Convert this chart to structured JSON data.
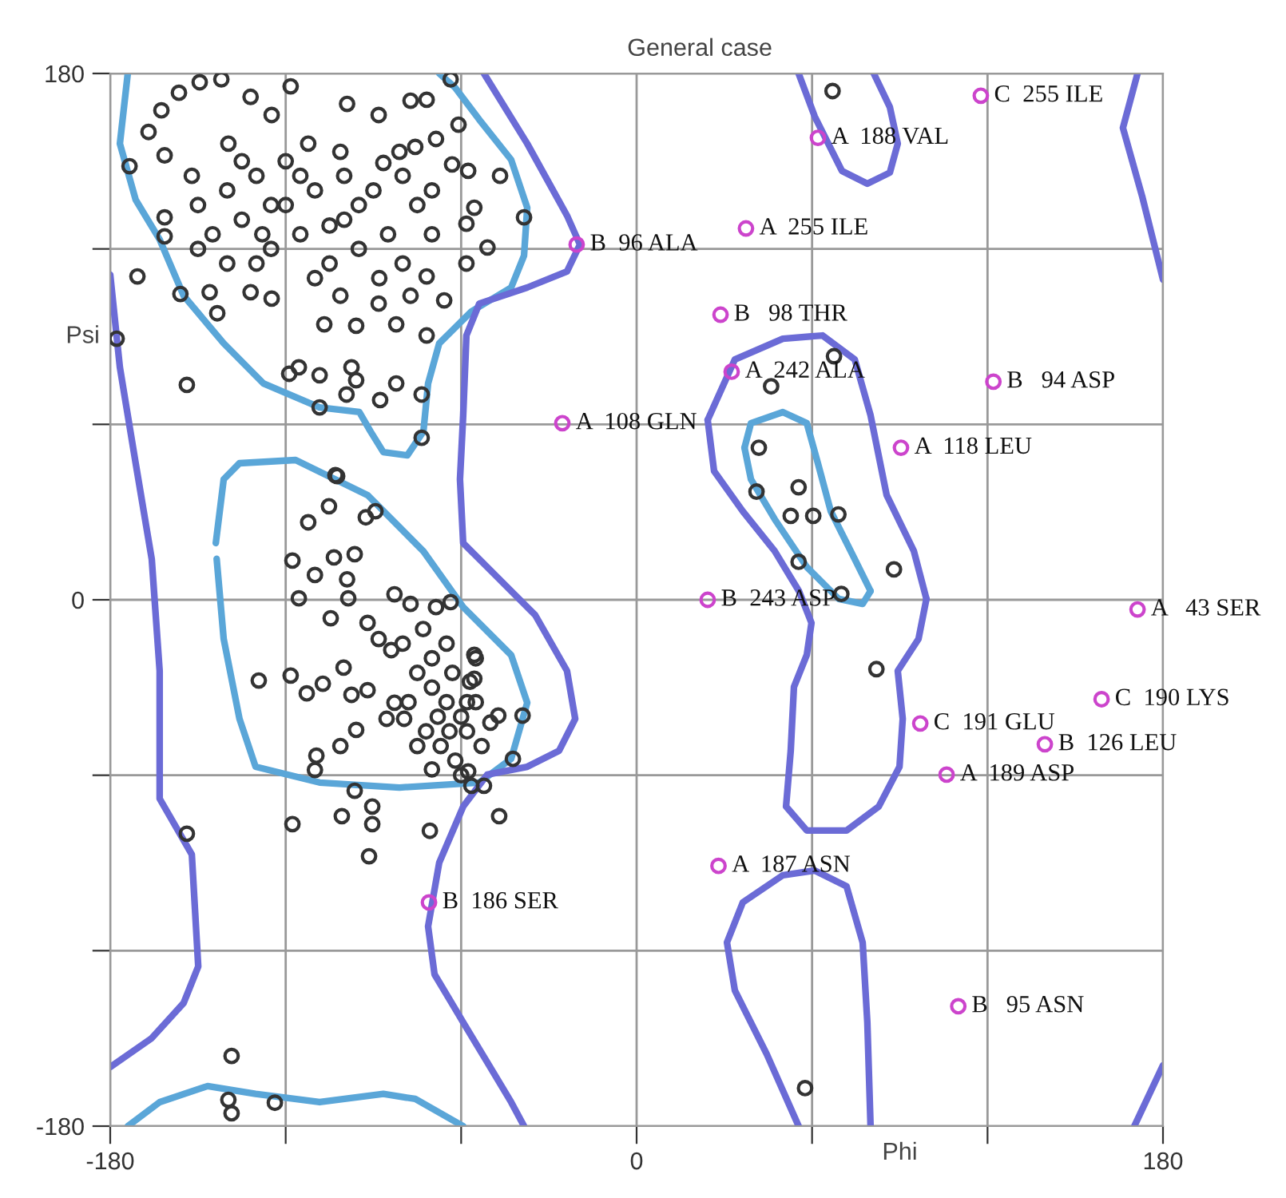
{
  "chart_data": {
    "type": "scatter",
    "title": "General case",
    "xlabel": "Phi",
    "ylabel": "Psi",
    "xlim": [
      -180,
      180
    ],
    "ylim": [
      -180,
      180
    ],
    "xticks": [
      -180,
      {
        "value": -120,
        "label": null
      },
      {
        "value": -60,
        "label": null
      },
      0,
      {
        "value": 60,
        "label": null
      },
      {
        "value": 120,
        "label": null
      },
      180
    ],
    "yticks": [
      -180,
      {
        "value": -120,
        "label": null
      },
      {
        "value": -60,
        "label": null
      },
      0,
      {
        "value": 60,
        "label": null
      },
      {
        "value": 120,
        "label": null
      },
      180
    ],
    "grid": true,
    "series": [
      {
        "type": "line",
        "color": "#5aa6d8",
        "x": [
          -174,
          -176.7,
          -171.3,
          -163.1,
          -154.9,
          -141.2,
          -127.6,
          -108.4,
          -94.8,
          -91,
          -86.6,
          -78.4,
          -72.9,
          -71.3,
          -67.5,
          -56.5,
          -42.9,
          -38.5,
          -37.4,
          -42.9,
          -53.8,
          -62,
          -67.5
        ],
        "values": [
          180,
          156,
          136.8,
          123.2,
          104,
          87.7,
          74,
          65.8,
          64.2,
          57.6,
          50.5,
          49.4,
          57.6,
          74,
          87.7,
          98.6,
          106.8,
          117.7,
          134.1,
          150.5,
          164.2,
          175.1,
          180
        ]
      },
      {
        "type": "line",
        "color": "#5aa6d8",
        "x": [
          -143.9,
          -141.2,
          -135.8,
          -116.6,
          -92,
          -72.9,
          -59.3,
          -42.9,
          -37.4,
          -42.9,
          -53.8,
          -81.1,
          -108.4,
          -130.3,
          -135.8,
          -141.2,
          -143.6
        ],
        "values": [
          19.4,
          41.2,
          46.7,
          47.8,
          35.8,
          16.6,
          -2.5,
          -18.9,
          -35.2,
          -54.4,
          -62.5,
          -64.2,
          -62.5,
          -57.1,
          -40.7,
          -13.4,
          14
        ]
      },
      {
        "type": "line",
        "color": "#5aa6d8",
        "x": [
          36.9,
          39.1,
          50,
          58.2,
          62,
          66.4,
          74.6,
          80
        ],
        "values": [
          52,
          60.4,
          64.2,
          60.4,
          46.7,
          30.3,
          13.9,
          3
        ]
      },
      {
        "type": "line",
        "color": "#5aa6d8",
        "x": [
          36.9,
          39.1,
          47.2,
          58.2,
          69.1,
          77.3,
          80
        ],
        "values": [
          52,
          41.2,
          27.6,
          11.2,
          0.3,
          -1.4,
          3
        ]
      },
      {
        "type": "line",
        "color": "#5aa6d8",
        "x": [
          -174,
          -163.1,
          -146.7,
          -130.3,
          -108.4,
          -86.6,
          -75.7,
          -59.3
        ],
        "values": [
          -180,
          -171.8,
          -166.3,
          -169,
          -171.8,
          -169,
          -170.7,
          -180
        ]
      },
      {
        "type": "line",
        "color": "#6b6bd6",
        "x": [
          -52.2,
          -37.4,
          -23.8,
          -19.4,
          -23.8,
          -37.4,
          -53.8,
          -58.2,
          -59.3,
          -60.4,
          -59.3,
          -48.4,
          -34.7,
          -23.8,
          -21,
          -26.5,
          -37.4,
          -51.1,
          -59.3,
          -67.5,
          -71.3,
          -69.1,
          -59.3,
          -51.1,
          -42.9,
          -38.5
        ],
        "values": [
          180,
          156,
          131.4,
          121.5,
          112.3,
          106.8,
          101.3,
          90.4,
          63.1,
          41.2,
          19.4,
          8.5,
          -5.2,
          -24.3,
          -40.7,
          -51.6,
          -57.1,
          -59.8,
          -70.7,
          -89.9,
          -111.7,
          -128.1,
          -144.5,
          -158.1,
          -171.8,
          -180
        ]
      },
      {
        "type": "line",
        "color": "#6b6bd6",
        "x": [
          -180,
          -176.7,
          -171.3,
          -165.8,
          -163.1,
          -163.1,
          -152.1,
          -151,
          -149.9,
          -154.9,
          -165.8,
          -180
        ],
        "values": [
          111.2,
          79.5,
          46.7,
          13.9,
          -24.3,
          -68,
          -87.1,
          -106.2,
          -125.4,
          -137.9,
          -149.9,
          -159.8
        ]
      },
      {
        "type": "line",
        "color": "#6b6bd6",
        "x": [
          24.3,
          33.6,
          50,
          63.6,
          74.6,
          80,
          85.5,
          94.8,
          99.1
        ],
        "values": [
          61.5,
          82.2,
          89.3,
          90.4,
          82.2,
          63.1,
          35.8,
          16.7,
          0.3
        ]
      },
      {
        "type": "line",
        "color": "#6b6bd6",
        "x": [
          24.3,
          26.5,
          36.3,
          47.2,
          55.5,
          59.8,
          58.2,
          53.8,
          52.7,
          51.1,
          58.2,
          71.8,
          82.8,
          89.9,
          91,
          89.3,
          96.4,
          99.1
        ],
        "values": [
          61.5,
          44,
          30.3,
          16.7,
          3,
          -7.9,
          -18.8,
          -29.8,
          -51.6,
          -70.7,
          -78.9,
          -78.9,
          -70.7,
          -57.1,
          -40.7,
          -24.3,
          -13.4,
          0.3
        ]
      },
      {
        "type": "line",
        "color": "#6b6bd6",
        "x": [
          55.4,
          60.9,
          70.2,
          78.9,
          86.6,
          89.3,
          86.6,
          81.1
        ],
        "values": [
          180,
          165.3,
          146.7,
          142.3,
          146.1,
          156,
          168.5,
          180
        ]
      },
      {
        "type": "line",
        "color": "#6b6bd6",
        "x": [
          171.3,
          166.3,
          172.9,
          180
        ],
        "values": [
          180,
          161.4,
          137.9,
          109.5
        ]
      },
      {
        "type": "line",
        "color": "#6b6bd6",
        "x": [
          55.4,
          44.5,
          33.6,
          30.9,
          36.3,
          50,
          60.9,
          71.8,
          77.3,
          78.9,
          80
        ],
        "values": [
          -180,
          -155.4,
          -133.6,
          -117.2,
          -103.5,
          -94.2,
          -92.6,
          -98,
          -117.2,
          -144.5,
          -180
        ]
      },
      {
        "type": "line",
        "color": "#6b6bd6",
        "x": [
          170.2,
          180
        ],
        "values": [
          -180,
          -159.2
        ]
      },
      {
        "marker": "circle",
        "color": "#333333",
        "x": [
          -156.5,
          -149.4,
          -142,
          -132,
          -118.3,
          -162.5,
          -166.9,
          -161.4,
          -99,
          -77.3,
          -71.8,
          -63.6,
          -88.2,
          -60.9,
          -46.7,
          -38.5,
          -51,
          -58.2,
          -65.8,
          -71.8,
          -73.5,
          -73.5,
          -87.7,
          -82.2,
          -97.5,
          -95.9,
          -99.2,
          -108.4,
          -115.5,
          -118.8,
          -108.4,
          -102.4,
          -106.8,
          -95.9,
          -82.2,
          -143.4,
          -156,
          -161.4,
          -161.4,
          -173.4,
          -146,
          -132,
          -124.8,
          -101.3,
          -88.2,
          -77.3,
          -71.8,
          -58.2,
          -55.5,
          -57.6,
          -63.1,
          -68.6,
          -75.7,
          -81.1,
          -86.6,
          -101.3,
          -112.3,
          -124.8,
          -139.6,
          -152.1,
          -140,
          -135,
          -130,
          -125,
          -120,
          -115,
          -110,
          -105,
          -100,
          -95,
          -90,
          -85,
          -80,
          -75,
          -70,
          -145,
          -150,
          -130,
          -120,
          -110,
          -100,
          -88,
          -125,
          -140,
          -115,
          -105,
          -95,
          -135,
          -80,
          -70,
          -150,
          -128,
          -177.8,
          -170.7,
          -153.8,
          -103,
          -105.2,
          -112.3,
          -92.6,
          -89.3,
          -117.7,
          -103.5,
          -96.4,
          -110,
          -99,
          -115.5,
          -98.6,
          -104.6,
          -129.2,
          -118.3,
          -112.8,
          -107.3,
          -100.2,
          -97.5,
          -92,
          -95.9,
          -101.3,
          -110,
          -109.5,
          -96.4,
          -82.8,
          -77.3,
          -68.6,
          -63.6,
          -92,
          -88.2,
          -83.9,
          -82.8,
          -85.5,
          -79.5,
          -75,
          -70,
          -65,
          -60,
          -72,
          -67,
          -62,
          -58,
          -55,
          -78,
          -70,
          -63,
          -57,
          -68,
          -75,
          -60,
          -53,
          -50,
          -65,
          -73,
          -55,
          -80,
          -70,
          -64,
          -58,
          -55.5,
          -55.5,
          -47.3,
          -42.3,
          -39,
          -57.6,
          -56.5,
          -52.2,
          -153.8,
          -117.7,
          -100.8,
          -90.4,
          -90.4,
          -91.5,
          -70.7,
          -47,
          -138.5,
          -139.6,
          -138.5,
          -123.7,
          67,
          41.8,
          41,
          55.4,
          52.7,
          60.4,
          69,
          55.4,
          88,
          46,
          67.5,
          70,
          82,
          57.6
        ],
        "values": [
          173.4,
          177,
          178,
          172,
          175.6,
          167.4,
          160,
          152,
          169.6,
          170.7,
          171,
          178,
          165.8,
          162.5,
          145,
          130.8,
          120.5,
          115,
          102.4,
          90.4,
          70.2,
          55.4,
          68.3,
          74,
          79.5,
          75.1,
          70.2,
          65.8,
          79.5,
          77.3,
          76.8,
          42.3,
          94.2,
          93.7,
          94.2,
          98,
          104.6,
          124.3,
          130.8,
          148.3,
          105.2,
          105.2,
          103,
          104,
          101.3,
          104,
          110.6,
          128.6,
          134.1,
          146.7,
          148.9,
          157.6,
          154.9,
          153.2,
          149.4,
          153.2,
          156,
          165.8,
          156,
          145,
          140,
          130,
          145,
          120,
          135,
          125,
          140,
          115,
          130,
          120,
          140,
          125,
          115,
          135,
          125,
          125,
          135,
          115,
          150,
          110,
          145,
          110,
          135,
          115,
          145,
          128,
          135,
          150,
          145,
          140,
          120,
          125,
          89.3,
          110.6,
          73.5,
          42.6,
          32,
          26.5,
          28.2,
          30.3,
          13.4,
          14.5,
          15.6,
          8.5,
          7,
          0.5,
          0.5,
          -6.3,
          -27.6,
          -25.9,
          -32,
          -28.7,
          -23.2,
          -32.5,
          -30.9,
          -44.5,
          -50,
          -58.2,
          -53.3,
          -65.3,
          1.9,
          -1.4,
          -2.5,
          -0.8,
          -7.9,
          -13.4,
          -17.2,
          -35.2,
          -40.7,
          -40.7,
          -25,
          -30,
          -35,
          -40,
          -45,
          -50,
          -55,
          -45,
          -35,
          -35,
          -20,
          -25,
          -28,
          -40,
          -50,
          -60,
          -50,
          -42,
          -15,
          -10,
          -20,
          -15,
          -58,
          -45,
          -35,
          -18.8,
          -27,
          -39.6,
          -54.4,
          -39.6,
          -58.7,
          -63.6,
          -63.6,
          -80,
          -76.7,
          -74,
          -70.7,
          -76.7,
          -87.7,
          -79,
          -74,
          -156,
          -171,
          -175.6,
          -172,
          174,
          52,
          37,
          38.5,
          28.7,
          28.7,
          29.2,
          13,
          10.4,
          73,
          83.3,
          2,
          -23.7,
          -167
        ]
      },
      {
        "marker": "circle",
        "color": "#cc44cc",
        "x": [
          -20.5,
          117.7,
          62,
          37.4,
          28.7,
          32.5,
          122,
          -25.4,
          90.4,
          24.3,
          171.3,
          159,
          97,
          139.6,
          106,
          28,
          -71,
          110
        ],
        "values": [
          121.5,
          172.4,
          158,
          127,
          97.5,
          78,
          74.6,
          60.4,
          52,
          0,
          -3.3,
          -34,
          -42.3,
          -49.4,
          -59.8,
          -91,
          -103.5,
          -139
        ]
      }
    ],
    "annotations": [
      {
        "text": "B  96 ALA",
        "x": -20.5,
        "y": 121.5
      },
      {
        "text": "C  255 ILE",
        "x": 117.7,
        "y": 172.4
      },
      {
        "text": "A  188 VAL",
        "x": 62,
        "y": 158
      },
      {
        "text": "A  255 ILE",
        "x": 37.4,
        "y": 127
      },
      {
        "text": "B   98 THR",
        "x": 28.7,
        "y": 97.5
      },
      {
        "text": "A  242 ALA",
        "x": 32.5,
        "y": 78
      },
      {
        "text": "B   94 ASP",
        "x": 122,
        "y": 74.6
      },
      {
        "text": "A  108 GLN",
        "x": -25.4,
        "y": 60.4
      },
      {
        "text": "A  118 LEU",
        "x": 90.4,
        "y": 52
      },
      {
        "text": "B  243 ASP",
        "x": 24.3,
        "y": 0
      },
      {
        "text": "A   43 SER",
        "x": 171.3,
        "y": -3.3
      },
      {
        "text": "C  190 LYS",
        "x": 159,
        "y": -34
      },
      {
        "text": "C  191 GLU",
        "x": 97,
        "y": -42.3
      },
      {
        "text": "B  126 LEU",
        "x": 139.6,
        "y": -49.4
      },
      {
        "text": "A  189 ASP",
        "x": 106,
        "y": -59.8
      },
      {
        "text": "A  187 ASN",
        "x": 28,
        "y": -91
      },
      {
        "text": "B  186 SER",
        "x": -71,
        "y": -103.5
      },
      {
        "text": "B   95 ASN",
        "x": 110,
        "y": -139
      }
    ]
  }
}
